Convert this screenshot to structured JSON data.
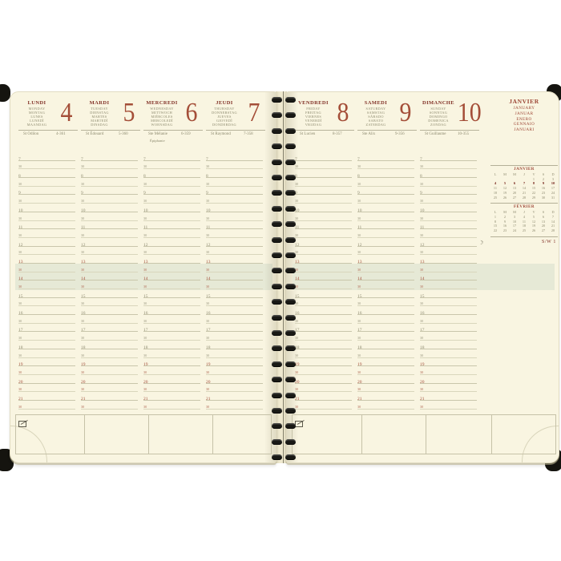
{
  "planner": {
    "week_label": "S/W 1",
    "month_block": {
      "title": "JANVIER",
      "translations": [
        "JANUARY",
        "JANUAR",
        "ENERO",
        "GENNAIO",
        "JANUARI"
      ]
    },
    "days": [
      {
        "name": "LUNDI",
        "translations": [
          "MONDAY",
          "MONTAG",
          "LUNES",
          "LUNEDÌ",
          "MAANDAG"
        ],
        "date": "4",
        "saint": "St Odilon",
        "day_count": "4-361",
        "extra": ""
      },
      {
        "name": "MARDI",
        "translations": [
          "TUESDAY",
          "DIENSTAG",
          "MARTES",
          "MARTEDÌ",
          "DINSDAG"
        ],
        "date": "5",
        "saint": "St Édouard",
        "day_count": "5-360",
        "extra": ""
      },
      {
        "name": "MERCREDI",
        "translations": [
          "WEDNESDAY",
          "MITTWOCH",
          "MIÉRCOLES",
          "MERCOLEDÌ",
          "WOENSDAG"
        ],
        "date": "6",
        "saint": "Ste Mélanie",
        "day_count": "6-359",
        "extra": "Épiphanie"
      },
      {
        "name": "JEUDI",
        "translations": [
          "THURSDAY",
          "DONNERSTAG",
          "JUEVES",
          "GIOVEDÌ",
          "DONDERDAG"
        ],
        "date": "7",
        "saint": "St Raymond",
        "day_count": "7-358",
        "extra": ""
      },
      {
        "name": "VENDREDI",
        "translations": [
          "FRIDAY",
          "FREITAG",
          "VIERNES",
          "VENERDÌ",
          "VRIJDAG"
        ],
        "date": "8",
        "saint": "St Lucien",
        "day_count": "8-357",
        "extra": ""
      },
      {
        "name": "SAMEDI",
        "translations": [
          "SATURDAY",
          "SAMSTAG",
          "SÁBADO",
          "SABATO",
          "ZATERDAG"
        ],
        "date": "9",
        "saint": "Ste Alix",
        "day_count": "9-356",
        "extra": ""
      },
      {
        "name": "DIMANCHE",
        "translations": [
          "SUNDAY",
          "SONNTAG",
          "DOMINGO",
          "DOMENICA",
          "ZONDAG"
        ],
        "date": "10",
        "saint": "St Guillaume",
        "day_count": "10-355",
        "extra": ""
      }
    ],
    "time_labels": [
      "7",
      "30",
      "8",
      "30",
      "9",
      "30",
      "10",
      "30",
      "11",
      "30",
      "12",
      "30",
      "13",
      "30",
      "14",
      "30",
      "15",
      "30",
      "16",
      "30",
      "17",
      "30",
      "18",
      "30",
      "19",
      "30",
      "20",
      "30",
      "21",
      "30"
    ],
    "red_time_indices": [
      12,
      13,
      14,
      15,
      24,
      25,
      26,
      27,
      28,
      29
    ],
    "mini_calendars": [
      {
        "title": "JANVIER",
        "day_headers": [
          "L",
          "M",
          "M",
          "J",
          "V",
          "S",
          "D"
        ],
        "weeks": [
          [
            "",
            "",
            "",
            "",
            "1",
            "2",
            "3"
          ],
          [
            "4",
            "5",
            "6",
            "7",
            "8",
            "9",
            "10"
          ],
          [
            "11",
            "12",
            "13",
            "14",
            "15",
            "16",
            "17"
          ],
          [
            "18",
            "19",
            "20",
            "21",
            "22",
            "23",
            "24"
          ],
          [
            "25",
            "26",
            "27",
            "28",
            "29",
            "30",
            "31"
          ]
        ],
        "bold_week": 1
      },
      {
        "title": "FÉVRIER",
        "day_headers": [
          "L",
          "M",
          "M",
          "J",
          "V",
          "S",
          "D"
        ],
        "weeks": [
          [
            "1",
            "2",
            "3",
            "4",
            "5",
            "6",
            "7"
          ],
          [
            "8",
            "9",
            "10",
            "11",
            "12",
            "13",
            "14"
          ],
          [
            "15",
            "16",
            "17",
            "18",
            "19",
            "20",
            "21"
          ],
          [
            "22",
            "23",
            "24",
            "25",
            "26",
            "27",
            "28"
          ]
        ],
        "bold_week": -1
      }
    ],
    "icons": {
      "moon": "☽",
      "memo": "memo-note"
    },
    "colors": {
      "accent_red": "#9c4434",
      "day_name_red": "#823228",
      "page_cream": "#f9f5e1",
      "band_green": "#e6e9d6",
      "olive_text": "#8d8a6f"
    }
  }
}
